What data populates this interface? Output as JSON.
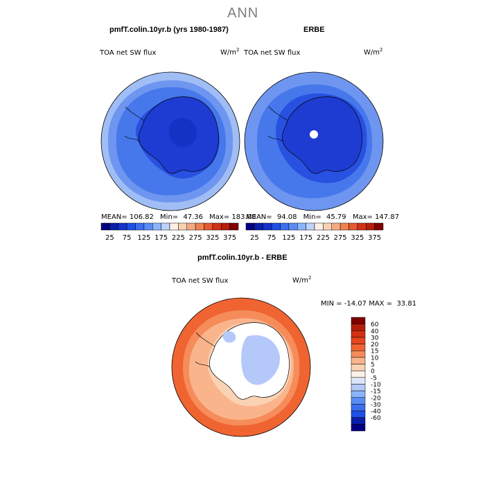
{
  "page": {
    "title": "ANN"
  },
  "panels": [
    {
      "title": "pmfT.colin.10yr.b (yrs 1980-1987)",
      "variable": "TOA net SW flux",
      "units_base": "W/m",
      "units_exp": "2",
      "stats": {
        "mean_label": "MEAN=",
        "mean": "106.82",
        "min_label": "Min=",
        "min": "47.36",
        "max_label": "Max=",
        "max": "183.08"
      }
    },
    {
      "title": "ERBE",
      "variable": "TOA net SW flux",
      "units_base": "W/m",
      "units_exp": "2",
      "stats": {
        "mean_label": "MEAN=",
        "mean": "94.08",
        "min_label": "Min=",
        "min": "45.79",
        "max_label": "Max=",
        "max": "147.87"
      }
    },
    {
      "title": "pmfT.colin.10yr.b - ERBE",
      "variable": "TOA net SW flux",
      "units_base": "W/m",
      "units_exp": "2",
      "stats_text": "MIN = -14.07 MAX =  33.81"
    }
  ],
  "colorbar_abs": {
    "tick_labels": [
      "25",
      "75",
      "125",
      "175",
      "225",
      "275",
      "325",
      "375"
    ],
    "colors": [
      "#000080",
      "#0a1ea8",
      "#1432cc",
      "#1e50e6",
      "#3c6ef0",
      "#5a8cf5",
      "#8cb4fa",
      "#bed2fa",
      "#fff0e6",
      "#fad2b4",
      "#f5aa82",
      "#f08250",
      "#e65a32",
      "#d23214",
      "#b41e0a",
      "#800000"
    ]
  },
  "colorbar_diff": {
    "labels": [
      "60",
      "40",
      "30",
      "20",
      "15",
      "10",
      "5",
      "0",
      "-5",
      "-10",
      "-15",
      "-20",
      "-30",
      "-40",
      "-60"
    ],
    "colors": [
      "#800000",
      "#b41e0a",
      "#d23214",
      "#e6461e",
      "#f06432",
      "#f58c5a",
      "#fab48c",
      "#fad2b4",
      "#fff0e6",
      "#dce6fa",
      "#b4c8fa",
      "#8cb4fa",
      "#5a8cf5",
      "#3c6ef0",
      "#1e50e6",
      "#0a1ea8",
      "#000080"
    ]
  },
  "map_colors": {
    "ocean_light": "#a0bef5",
    "ocean_mid": "#6e96f0",
    "ocean_dark": "#4678eb",
    "ice_1": "#2850e1",
    "ice_2": "#1e3cd2",
    "ice_3": "#1432c3",
    "diff_hi": "#f06432",
    "diff_mid": "#f58c5a",
    "diff_lo": "#fab48c",
    "diff_pale": "#fad2b4",
    "diff_white": "#ffffff",
    "diff_blue": "#b4c8fa"
  }
}
